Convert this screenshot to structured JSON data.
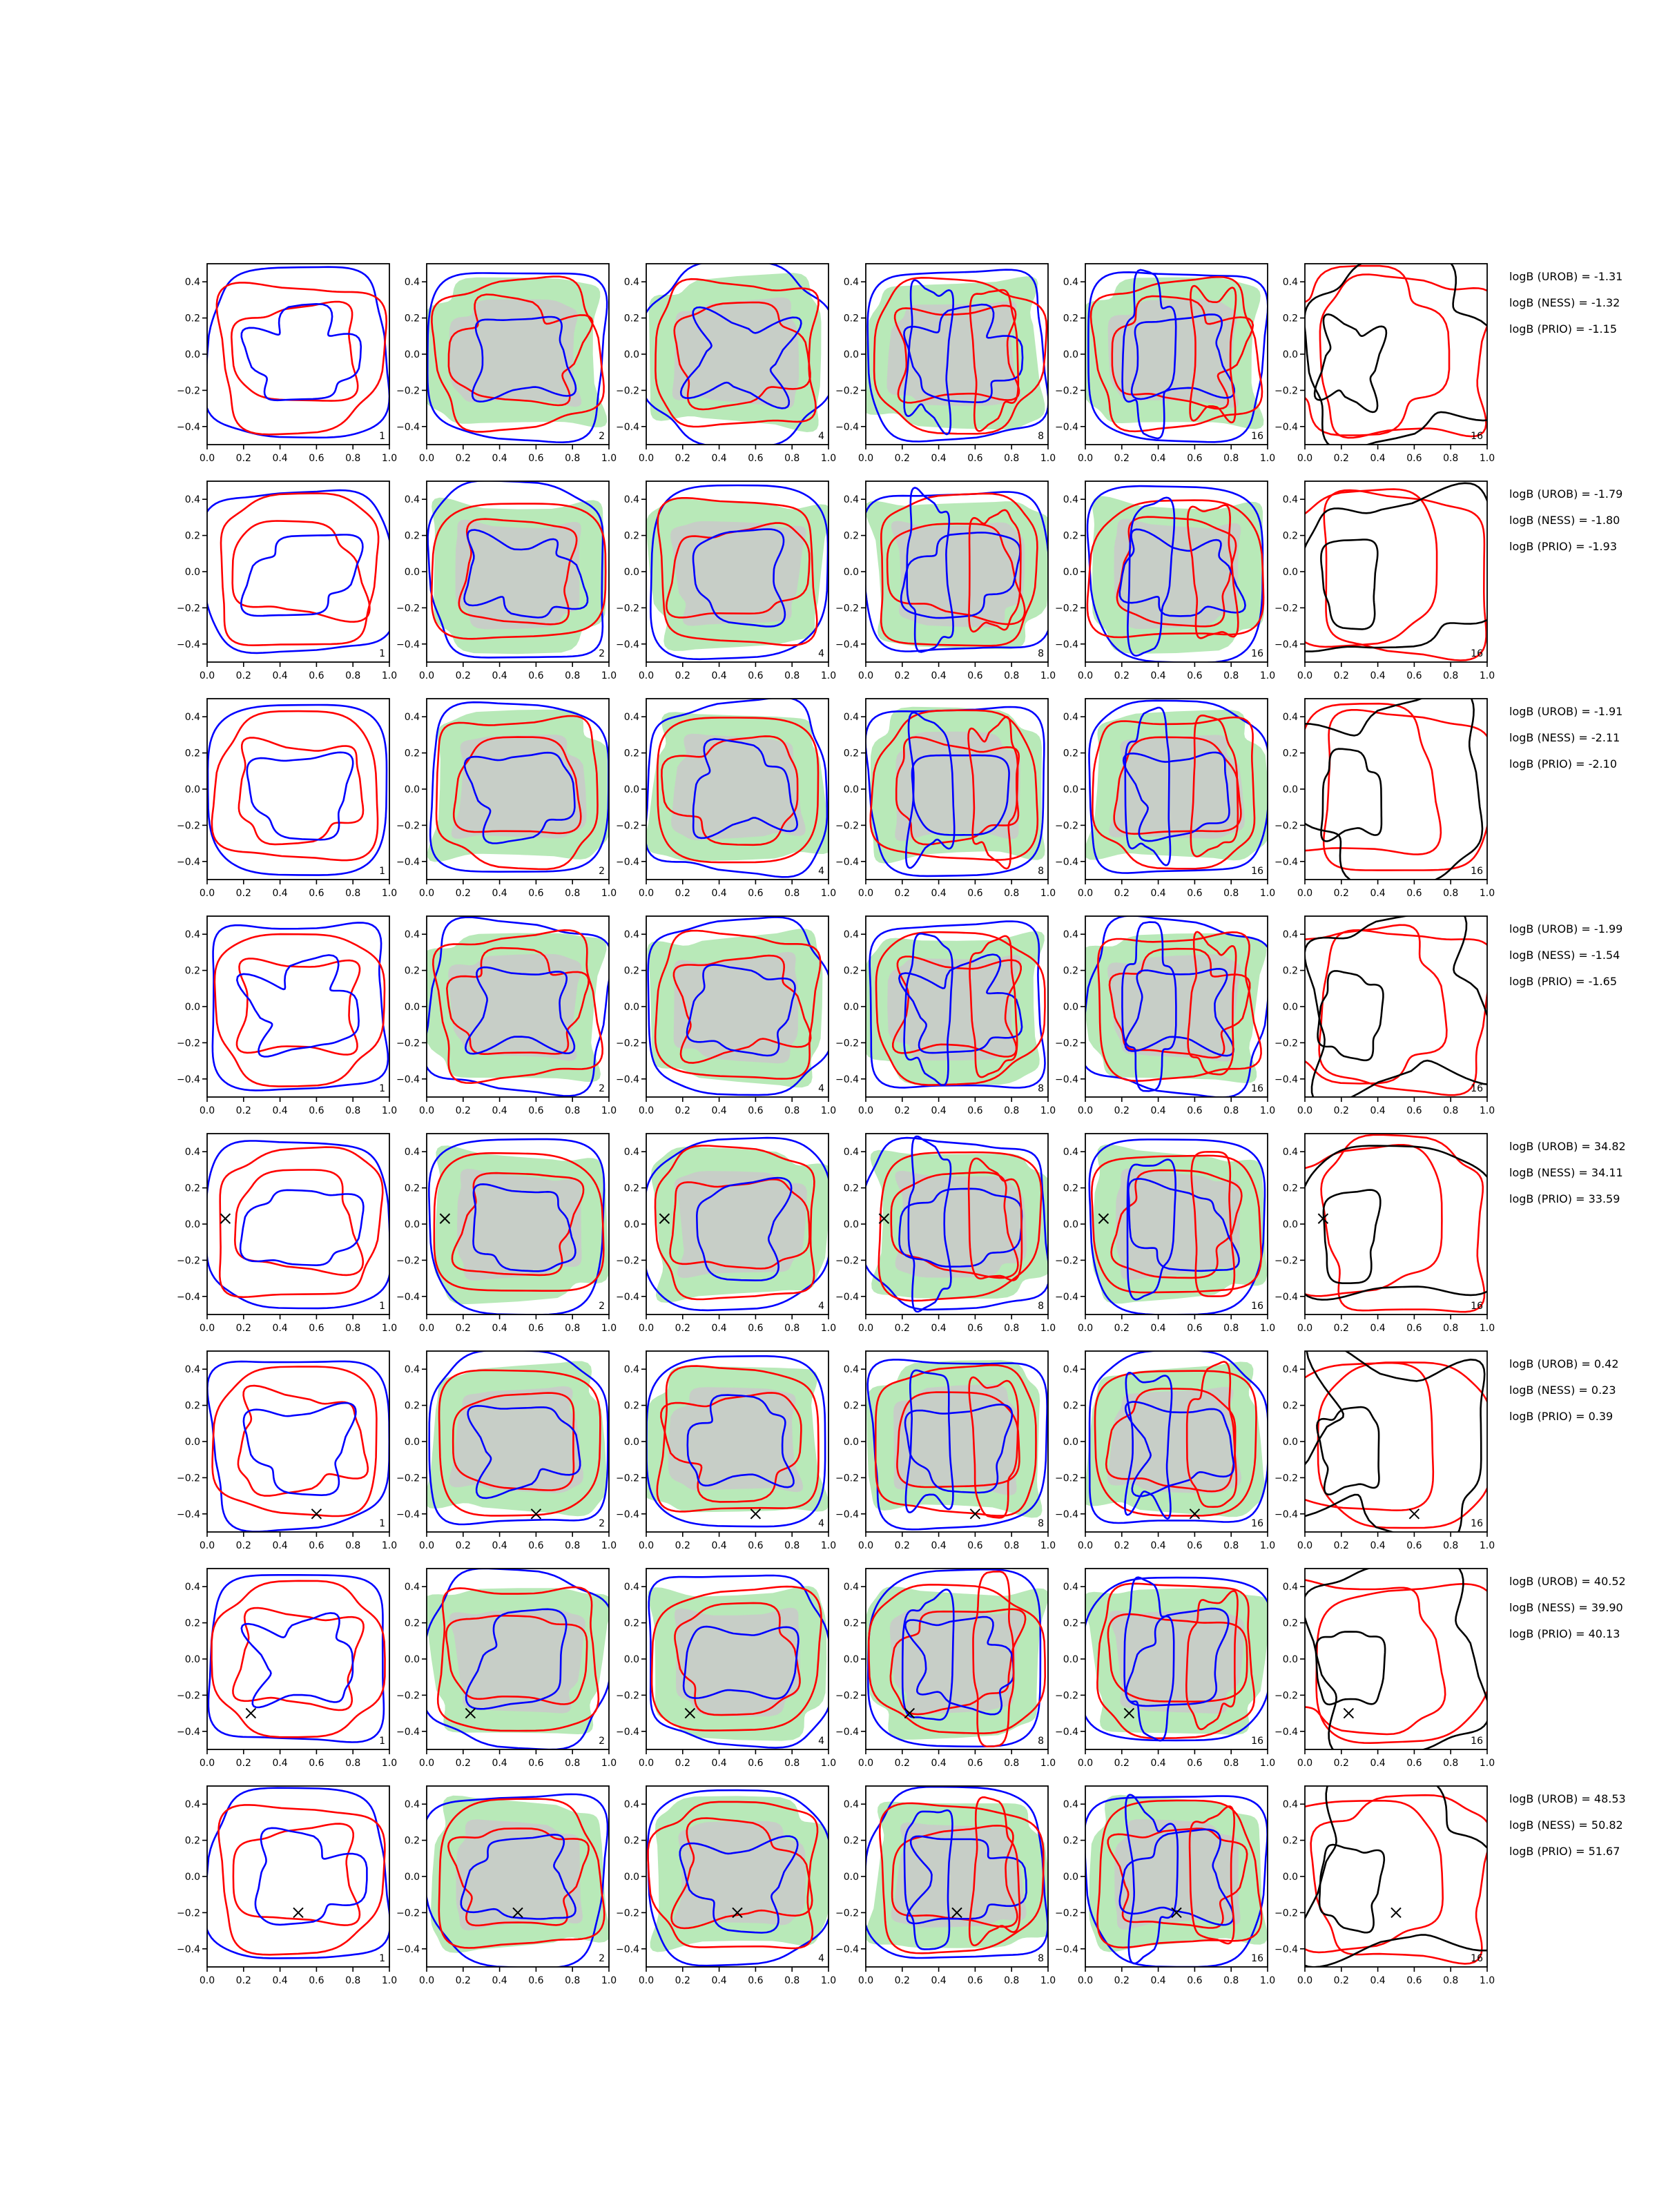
{
  "figure": {
    "grid": {
      "rows": 8,
      "cols": 6
    },
    "colors": {
      "red": "#ff0000",
      "blue": "#0000ff",
      "black": "#000000",
      "green_fill": "#b8e9b8",
      "grey_fill": "#c9c9c9"
    },
    "x_ticks": [
      "0.0",
      "0.2",
      "0.4",
      "0.6",
      "0.8",
      "1.0"
    ],
    "y_ticks": [
      "0.4",
      "0.2",
      "0.0",
      "−0.2",
      "−0.4"
    ],
    "x_range": [
      0,
      1
    ],
    "y_range": [
      -0.5,
      0.5
    ],
    "column_numbers": [
      "1",
      "2",
      "4",
      "8",
      "16",
      "16"
    ],
    "column_styles": [
      "lines",
      "lines+fill",
      "lines+fill",
      "lines+fill",
      "lines+fill",
      "red+black"
    ]
  },
  "rows": [
    {
      "logB": [
        "logB (UROB) = -1.31",
        "logB (NESS) = -1.32",
        "logB (PRIO) = -1.15"
      ],
      "marker": null,
      "fill_pattern": [
        true,
        true,
        true,
        true,
        false
      ]
    },
    {
      "logB": [
        "logB (UROB) = -1.79",
        "logB (NESS) = -1.80",
        "logB (PRIO) = -1.93"
      ],
      "marker": null,
      "fill_pattern": [
        true,
        true,
        true,
        true,
        false
      ]
    },
    {
      "logB": [
        "logB (UROB) = -1.91",
        "logB (NESS) = -2.11",
        "logB (PRIO) = -2.10"
      ],
      "marker": null,
      "fill_pattern": [
        true,
        true,
        true,
        true,
        false
      ]
    },
    {
      "logB": [
        "logB (UROB) = -1.99",
        "logB (NESS) = -1.54",
        "logB (PRIO) = -1.65"
      ],
      "marker": null,
      "fill_pattern": [
        true,
        true,
        true,
        true,
        false
      ]
    },
    {
      "logB": [
        "logB (UROB) = 34.82",
        "logB (NESS) = 34.11",
        "logB (PRIO) = 33.59"
      ],
      "marker": [
        0.1,
        0.03
      ],
      "fill_pattern": [
        true,
        true,
        true,
        true,
        false
      ]
    },
    {
      "logB": [
        "logB (UROB) = 0.42",
        "logB (NESS) = 0.23",
        "logB (PRIO) = 0.39"
      ],
      "marker": [
        0.6,
        -0.4
      ],
      "fill_pattern": [
        true,
        true,
        true,
        true,
        false
      ]
    },
    {
      "logB": [
        "logB (UROB) = 40.52",
        "logB (NESS) = 39.90",
        "logB (PRIO) = 40.13"
      ],
      "marker": [
        0.24,
        -0.3
      ],
      "fill_pattern": [
        true,
        true,
        true,
        true,
        false
      ]
    },
    {
      "logB": [
        "logB (UROB) = 48.53",
        "logB (NESS) = 50.82",
        "logB (PRIO) = 51.67"
      ],
      "marker": [
        0.5,
        -0.2
      ],
      "fill_pattern": [
        true,
        true,
        true,
        true,
        false
      ]
    }
  ]
}
